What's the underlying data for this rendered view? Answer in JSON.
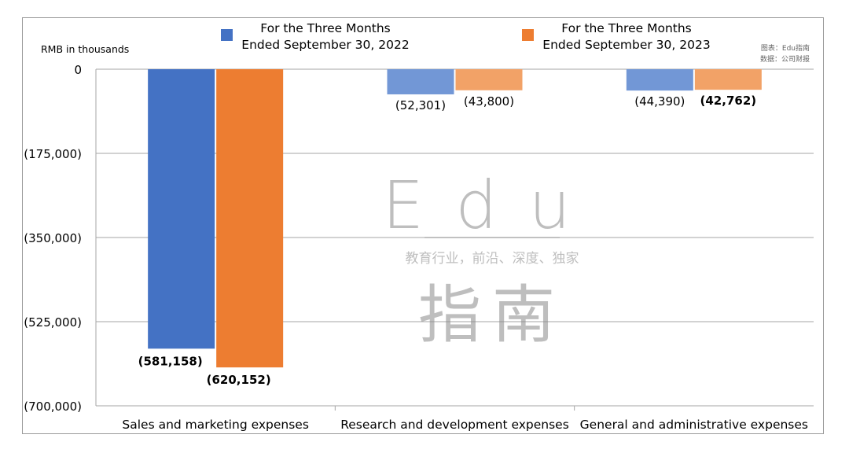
{
  "chart_data": {
    "type": "bar",
    "unit_label": "RMB in thousands",
    "categories": [
      "Sales and marketing expenses",
      "Research and development expenses",
      "General and administrative expenses"
    ],
    "series": [
      {
        "name": "For the Three Months Ended September 30, 2022",
        "name_lines": [
          "For the Three Months",
          "Ended September 30, 2022"
        ],
        "values": [
          -581158,
          -52301,
          -44390
        ],
        "labels": [
          "(581,158)",
          "(52,301)",
          "(44,390)"
        ],
        "color": "#4472C4",
        "faded_color": "#7297D6"
      },
      {
        "name": "For the Three Months Ended September 30, 2023",
        "name_lines": [
          "For the Three Months",
          "Ended September 30, 2023"
        ],
        "values": [
          -620152,
          -43800,
          -42762
        ],
        "labels": [
          "(620,152)",
          "(43,800)",
          "(42,762)"
        ],
        "color": "#ED7D31",
        "faded_color": "#F2A267"
      }
    ],
    "ylim": [
      -700000,
      0
    ],
    "yticks": [
      0,
      -175000,
      -350000,
      -525000,
      -700000
    ],
    "ytick_labels": [
      "0",
      "(175,000)",
      "(350,000)",
      "(525,000)",
      "(700,000)"
    ],
    "grid": true,
    "legend_position": "top"
  },
  "source": {
    "chart_credit": "图表：Edu指南",
    "data_credit": "数据：公司财报"
  },
  "watermark": {
    "logo_text": "Edu",
    "tagline": "教育行业，前沿、深度、独家",
    "brand_cn": "指南"
  }
}
